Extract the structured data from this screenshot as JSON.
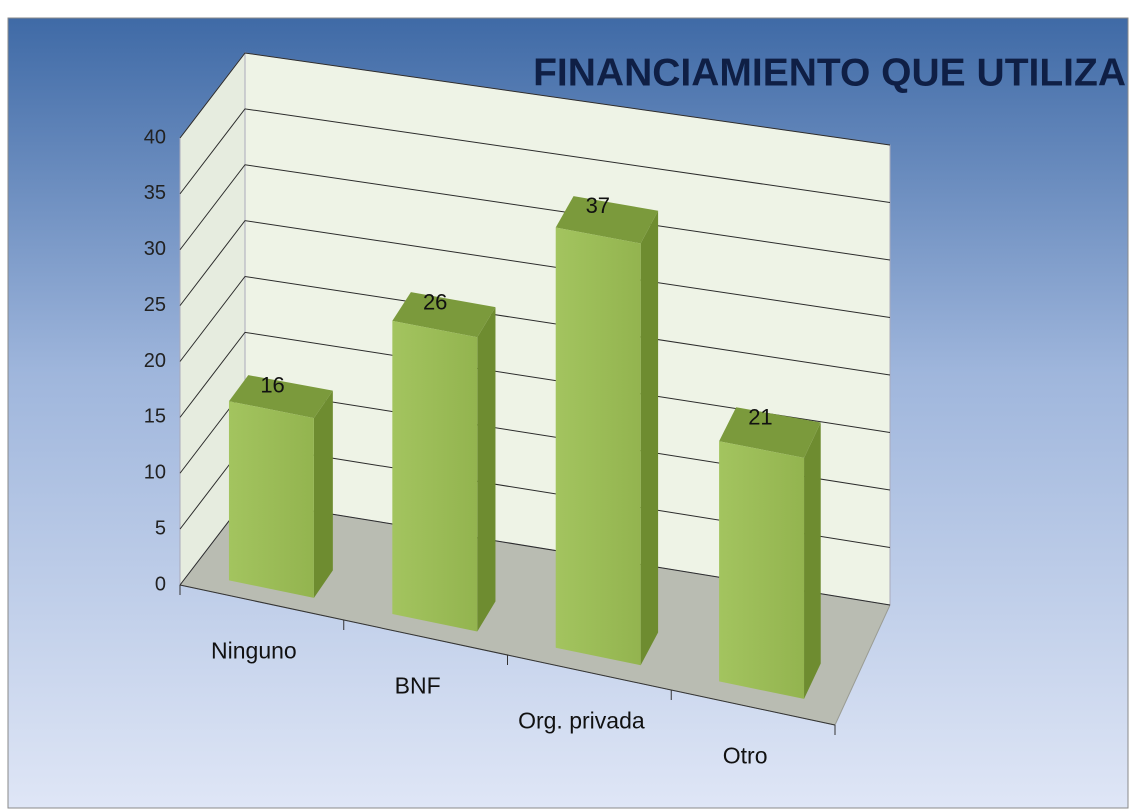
{
  "chart_data": {
    "type": "bar3d",
    "title": "FINANCIAMIENTO QUE UTILIZA",
    "categories": [
      "Ninguno",
      "BNF",
      "Org. privada",
      "Otro"
    ],
    "values": [
      16,
      26,
      37,
      21
    ],
    "color": "#9bbb59",
    "ylim": [
      0,
      40
    ],
    "yticks": [
      0,
      5,
      10,
      15,
      20,
      25,
      30,
      35,
      40
    ],
    "grid": true
  }
}
